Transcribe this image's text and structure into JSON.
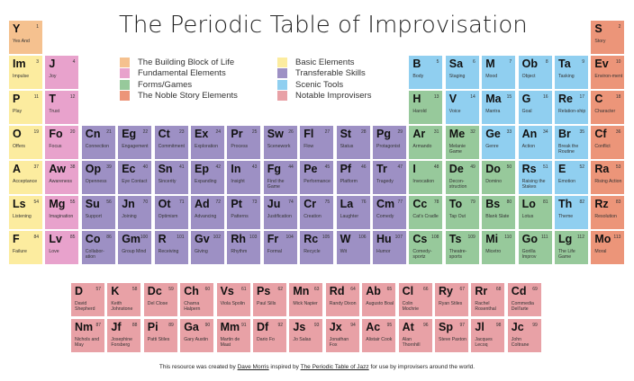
{
  "title": "The Periodic Table of Improvisation",
  "colors": {
    "building": "#f5c18f",
    "fundamental": "#e8a2cc",
    "forms": "#97c99b",
    "noble": "#ec9579",
    "basic": "#fcec9f",
    "transferable": "#9d90c4",
    "scenic": "#90cff0",
    "notable": "#e8a1a6"
  },
  "legend": [
    {
      "label": "The Building Block of Life",
      "category": "building"
    },
    {
      "label": "Fundamental Elements",
      "category": "fundamental"
    },
    {
      "label": "Forms/Games",
      "category": "forms"
    },
    {
      "label": "The Noble Story Elements",
      "category": "noble"
    },
    {
      "label": "Basic Elements",
      "category": "basic"
    },
    {
      "label": "Transferable Skills",
      "category": "transferable"
    },
    {
      "label": "Scenic Tools",
      "category": "scenic"
    },
    {
      "label": "Notable Improvisers",
      "category": "notable"
    }
  ],
  "elements": [
    {
      "sym": "Y",
      "num": "1",
      "name": "Yes And",
      "cat": "building",
      "col": 0,
      "row": 0
    },
    {
      "sym": "S",
      "num": "2",
      "name": "Story",
      "cat": "noble",
      "col": 16,
      "row": 0
    },
    {
      "sym": "Im",
      "num": "3",
      "name": "Impulse",
      "cat": "basic",
      "col": 0,
      "row": 1
    },
    {
      "sym": "J",
      "num": "4",
      "name": "Joy",
      "cat": "fundamental",
      "col": 1,
      "row": 1
    },
    {
      "sym": "B",
      "num": "5",
      "name": "Body",
      "cat": "scenic",
      "col": 11,
      "row": 1
    },
    {
      "sym": "Sa",
      "num": "6",
      "name": "Staging",
      "cat": "scenic",
      "col": 12,
      "row": 1
    },
    {
      "sym": "M",
      "num": "7",
      "name": "Mood",
      "cat": "scenic",
      "col": 13,
      "row": 1
    },
    {
      "sym": "Ob",
      "num": "8",
      "name": "Object",
      "cat": "scenic",
      "col": 14,
      "row": 1
    },
    {
      "sym": "Ta",
      "num": "9",
      "name": "Tasking",
      "cat": "scenic",
      "col": 15,
      "row": 1
    },
    {
      "sym": "Ev",
      "num": "10",
      "name": "Environ-ment",
      "cat": "noble",
      "col": 16,
      "row": 1
    },
    {
      "sym": "P",
      "num": "11",
      "name": "Play",
      "cat": "basic",
      "col": 0,
      "row": 2
    },
    {
      "sym": "T",
      "num": "12",
      "name": "Trust",
      "cat": "fundamental",
      "col": 1,
      "row": 2
    },
    {
      "sym": "H",
      "num": "13",
      "name": "Harold",
      "cat": "forms",
      "col": 11,
      "row": 2
    },
    {
      "sym": "V",
      "num": "14",
      "name": "Voice",
      "cat": "scenic",
      "col": 12,
      "row": 2
    },
    {
      "sym": "Ma",
      "num": "15",
      "name": "Mantra",
      "cat": "scenic",
      "col": 13,
      "row": 2
    },
    {
      "sym": "G",
      "num": "16",
      "name": "Goal",
      "cat": "scenic",
      "col": 14,
      "row": 2
    },
    {
      "sym": "Re",
      "num": "17",
      "name": "Relation-ship",
      "cat": "scenic",
      "col": 15,
      "row": 2
    },
    {
      "sym": "C",
      "num": "18",
      "name": "Character",
      "cat": "noble",
      "col": 16,
      "row": 2
    },
    {
      "sym": "O",
      "num": "19",
      "name": "Offers",
      "cat": "basic",
      "col": 0,
      "row": 3
    },
    {
      "sym": "Fo",
      "num": "20",
      "name": "Focus",
      "cat": "fundamental",
      "col": 1,
      "row": 3
    },
    {
      "sym": "Cn",
      "num": "21",
      "name": "Connection",
      "cat": "transferable",
      "col": 2,
      "row": 3
    },
    {
      "sym": "Eg",
      "num": "22",
      "name": "Engagement",
      "cat": "transferable",
      "col": 3,
      "row": 3
    },
    {
      "sym": "Ct",
      "num": "23",
      "name": "Commitment",
      "cat": "transferable",
      "col": 4,
      "row": 3
    },
    {
      "sym": "Ex",
      "num": "24",
      "name": "Exploration",
      "cat": "transferable",
      "col": 5,
      "row": 3
    },
    {
      "sym": "Pr",
      "num": "25",
      "name": "Process",
      "cat": "transferable",
      "col": 6,
      "row": 3
    },
    {
      "sym": "Sw",
      "num": "26",
      "name": "Scenework",
      "cat": "transferable",
      "col": 7,
      "row": 3
    },
    {
      "sym": "Fl",
      "num": "27",
      "name": "Flow",
      "cat": "transferable",
      "col": 8,
      "row": 3
    },
    {
      "sym": "St",
      "num": "28",
      "name": "Status",
      "cat": "transferable",
      "col": 9,
      "row": 3
    },
    {
      "sym": "Pg",
      "num": "29",
      "name": "Protagonist",
      "cat": "transferable",
      "col": 10,
      "row": 3
    },
    {
      "sym": "Ar",
      "num": "31",
      "name": "Armando",
      "cat": "forms",
      "col": 11,
      "row": 3
    },
    {
      "sym": "Me",
      "num": "32",
      "name": "Melanie Game",
      "cat": "forms",
      "col": 12,
      "row": 3
    },
    {
      "sym": "Ge",
      "num": "33",
      "name": "Genre",
      "cat": "scenic",
      "col": 13,
      "row": 3
    },
    {
      "sym": "An",
      "num": "34",
      "name": "Action",
      "cat": "scenic",
      "col": 14,
      "row": 3
    },
    {
      "sym": "Br",
      "num": "35",
      "name": "Break the Routine",
      "cat": "scenic",
      "col": 15,
      "row": 3
    },
    {
      "sym": "Cf",
      "num": "36",
      "name": "Conflict",
      "cat": "noble",
      "col": 16,
      "row": 3
    },
    {
      "sym": "A",
      "num": "37",
      "name": "Acceptance",
      "cat": "basic",
      "col": 0,
      "row": 4
    },
    {
      "sym": "Aw",
      "num": "38",
      "name": "Awareness",
      "cat": "fundamental",
      "col": 1,
      "row": 4
    },
    {
      "sym": "Op",
      "num": "39",
      "name": "Openness",
      "cat": "transferable",
      "col": 2,
      "row": 4
    },
    {
      "sym": "Ec",
      "num": "40",
      "name": "Eye Contact",
      "cat": "transferable",
      "col": 3,
      "row": 4
    },
    {
      "sym": "Sn",
      "num": "41",
      "name": "Sincerity",
      "cat": "transferable",
      "col": 4,
      "row": 4
    },
    {
      "sym": "Ep",
      "num": "42",
      "name": "Expanding",
      "cat": "transferable",
      "col": 5,
      "row": 4
    },
    {
      "sym": "In",
      "num": "43",
      "name": "Insight",
      "cat": "transferable",
      "col": 6,
      "row": 4
    },
    {
      "sym": "Fg",
      "num": "44",
      "name": "Find the Game",
      "cat": "transferable",
      "col": 7,
      "row": 4
    },
    {
      "sym": "Pe",
      "num": "45",
      "name": "Performance",
      "cat": "transferable",
      "col": 8,
      "row": 4
    },
    {
      "sym": "Pf",
      "num": "46",
      "name": "Platform",
      "cat": "transferable",
      "col": 9,
      "row": 4
    },
    {
      "sym": "Tr",
      "num": "47",
      "name": "Tragedy",
      "cat": "transferable",
      "col": 10,
      "row": 4
    },
    {
      "sym": "I",
      "num": "48",
      "name": "Invocation",
      "cat": "forms",
      "col": 11,
      "row": 4
    },
    {
      "sym": "De",
      "num": "49",
      "name": "Decon-struction",
      "cat": "forms",
      "col": 12,
      "row": 4
    },
    {
      "sym": "Do",
      "num": "50",
      "name": "Domino",
      "cat": "forms",
      "col": 13,
      "row": 4
    },
    {
      "sym": "Rs",
      "num": "51",
      "name": "Raising the Stakes",
      "cat": "scenic",
      "col": 14,
      "row": 4
    },
    {
      "sym": "E",
      "num": "52",
      "name": "Emotion",
      "cat": "scenic",
      "col": 15,
      "row": 4
    },
    {
      "sym": "Ra",
      "num": "53",
      "name": "Rising Action",
      "cat": "noble",
      "col": 16,
      "row": 4
    },
    {
      "sym": "Ls",
      "num": "54",
      "name": "Listening",
      "cat": "basic",
      "col": 0,
      "row": 5
    },
    {
      "sym": "Mg",
      "num": "55",
      "name": "Imagination",
      "cat": "fundamental",
      "col": 1,
      "row": 5
    },
    {
      "sym": "Su",
      "num": "56",
      "name": "Support",
      "cat": "transferable",
      "col": 2,
      "row": 5
    },
    {
      "sym": "Jn",
      "num": "70",
      "name": "Joining",
      "cat": "transferable",
      "col": 3,
      "row": 5
    },
    {
      "sym": "Ot",
      "num": "71",
      "name": "Optimism",
      "cat": "transferable",
      "col": 4,
      "row": 5
    },
    {
      "sym": "Ad",
      "num": "72",
      "name": "Advancing",
      "cat": "transferable",
      "col": 5,
      "row": 5
    },
    {
      "sym": "Pt",
      "num": "73",
      "name": "Patterns",
      "cat": "transferable",
      "col": 6,
      "row": 5
    },
    {
      "sym": "Ju",
      "num": "74",
      "name": "Justification",
      "cat": "transferable",
      "col": 7,
      "row": 5
    },
    {
      "sym": "Cr",
      "num": "75",
      "name": "Creation",
      "cat": "transferable",
      "col": 8,
      "row": 5
    },
    {
      "sym": "La",
      "num": "76",
      "name": "Laughter",
      "cat": "transferable",
      "col": 9,
      "row": 5
    },
    {
      "sym": "Cm",
      "num": "77",
      "name": "Comedy",
      "cat": "transferable",
      "col": 10,
      "row": 5
    },
    {
      "sym": "Cc",
      "num": "78",
      "name": "Cat's Cradle",
      "cat": "forms",
      "col": 11,
      "row": 5
    },
    {
      "sym": "To",
      "num": "79",
      "name": "Tap Out",
      "cat": "forms",
      "col": 12,
      "row": 5
    },
    {
      "sym": "Bs",
      "num": "80",
      "name": "Blank Slate",
      "cat": "forms",
      "col": 13,
      "row": 5
    },
    {
      "sym": "Lo",
      "num": "81",
      "name": "Lotus",
      "cat": "forms",
      "col": 14,
      "row": 5
    },
    {
      "sym": "Th",
      "num": "82",
      "name": "Theme",
      "cat": "scenic",
      "col": 15,
      "row": 5
    },
    {
      "sym": "Rz",
      "num": "83",
      "name": "Resolution",
      "cat": "noble",
      "col": 16,
      "row": 5
    },
    {
      "sym": "F",
      "num": "84",
      "name": "Failure",
      "cat": "basic",
      "col": 0,
      "row": 6
    },
    {
      "sym": "Lv",
      "num": "85",
      "name": "Love",
      "cat": "fundamental",
      "col": 1,
      "row": 6
    },
    {
      "sym": "Co",
      "num": "86",
      "name": "Collabor-ation",
      "cat": "transferable",
      "col": 2,
      "row": 6
    },
    {
      "sym": "Gm",
      "num": "100",
      "name": "Group Mind",
      "cat": "transferable",
      "col": 3,
      "row": 6
    },
    {
      "sym": "R",
      "num": "101",
      "name": "Receiving",
      "cat": "transferable",
      "col": 4,
      "row": 6
    },
    {
      "sym": "Gv",
      "num": "102",
      "name": "Giving",
      "cat": "transferable",
      "col": 5,
      "row": 6
    },
    {
      "sym": "Rh",
      "num": "103",
      "name": "Rhythm",
      "cat": "transferable",
      "col": 6,
      "row": 6
    },
    {
      "sym": "Fr",
      "num": "104",
      "name": "Formal",
      "cat": "transferable",
      "col": 7,
      "row": 6
    },
    {
      "sym": "Rc",
      "num": "105",
      "name": "Recycle",
      "cat": "transferable",
      "col": 8,
      "row": 6
    },
    {
      "sym": "W",
      "num": "106",
      "name": "Wit",
      "cat": "transferable",
      "col": 9,
      "row": 6
    },
    {
      "sym": "Hu",
      "num": "107",
      "name": "Humor",
      "cat": "transferable",
      "col": 10,
      "row": 6
    },
    {
      "sym": "Cs",
      "num": "108",
      "name": "Comedy-sportz",
      "cat": "forms",
      "col": 11,
      "row": 6
    },
    {
      "sym": "Ts",
      "num": "109",
      "name": "Theatre-sports",
      "cat": "forms",
      "col": 12,
      "row": 6
    },
    {
      "sym": "Mi",
      "num": "110",
      "name": "Micetro",
      "cat": "forms",
      "col": 13,
      "row": 6
    },
    {
      "sym": "Go",
      "num": "111",
      "name": "Gorilla Improv",
      "cat": "forms",
      "col": 14,
      "row": 6
    },
    {
      "sym": "Lg",
      "num": "112",
      "name": "The Life Game",
      "cat": "forms",
      "col": 15,
      "row": 6
    },
    {
      "sym": "Mo",
      "num": "113",
      "name": "Moral",
      "cat": "noble",
      "col": 16,
      "row": 6
    }
  ],
  "improvisers": [
    {
      "sym": "D",
      "num": "57",
      "name": "David Shepherd",
      "col": 0,
      "row": 0
    },
    {
      "sym": "K",
      "num": "58",
      "name": "Keith Johnstone",
      "col": 1,
      "row": 0
    },
    {
      "sym": "Dc",
      "num": "59",
      "name": "Del Close",
      "col": 2,
      "row": 0
    },
    {
      "sym": "Ch",
      "num": "60",
      "name": "Charna Halpern",
      "col": 3,
      "row": 0
    },
    {
      "sym": "Vs",
      "num": "61",
      "name": "Viola Spolin",
      "col": 4,
      "row": 0
    },
    {
      "sym": "Ps",
      "num": "62",
      "name": "Paul Sills",
      "col": 5,
      "row": 0
    },
    {
      "sym": "Mn",
      "num": "63",
      "name": "Mick Napier",
      "col": 6,
      "row": 0
    },
    {
      "sym": "Rd",
      "num": "64",
      "name": "Randy Dixon",
      "col": 7,
      "row": 0
    },
    {
      "sym": "Ab",
      "num": "65",
      "name": "Augusto Boal",
      "col": 8,
      "row": 0
    },
    {
      "sym": "Cl",
      "num": "66",
      "name": "Colin Mochrie",
      "col": 9,
      "row": 0
    },
    {
      "sym": "Ry",
      "num": "67",
      "name": "Ryan Stiles",
      "col": 10,
      "row": 0
    },
    {
      "sym": "Rr",
      "num": "68",
      "name": "Rachel Rosenthal",
      "col": 11,
      "row": 0
    },
    {
      "sym": "Cd",
      "num": "69",
      "name": "Commedia Dell'arte",
      "col": 12,
      "row": 0
    },
    {
      "sym": "Nm",
      "num": "87",
      "name": "Nichols and May",
      "col": 0,
      "row": 1
    },
    {
      "sym": "Jf",
      "num": "88",
      "name": "Josephine Forsberg",
      "col": 1,
      "row": 1
    },
    {
      "sym": "Pi",
      "num": "89",
      "name": "Patti Stiles",
      "col": 2,
      "row": 1
    },
    {
      "sym": "Ga",
      "num": "90",
      "name": "Gary Austin",
      "col": 3,
      "row": 1
    },
    {
      "sym": "Mm",
      "num": "91",
      "name": "Martin de Maat",
      "col": 4,
      "row": 1
    },
    {
      "sym": "Df",
      "num": "92",
      "name": "Dario Fo",
      "col": 5,
      "row": 1
    },
    {
      "sym": "Js",
      "num": "93",
      "name": "Jo Salas",
      "col": 6,
      "row": 1
    },
    {
      "sym": "Jx",
      "num": "94",
      "name": "Jonathan Fox",
      "col": 7,
      "row": 1
    },
    {
      "sym": "Ac",
      "num": "95",
      "name": "Alistair Cook",
      "col": 8,
      "row": 1
    },
    {
      "sym": "At",
      "num": "96",
      "name": "Alan Thornhill",
      "col": 9,
      "row": 1
    },
    {
      "sym": "Sp",
      "num": "97",
      "name": "Steve Paxton",
      "col": 10,
      "row": 1
    },
    {
      "sym": "Jl",
      "num": "98",
      "name": "Jacques Lecoq",
      "col": 11,
      "row": 1
    },
    {
      "sym": "Jc",
      "num": "99",
      "name": "John Coltrane",
      "col": 12,
      "row": 1
    }
  ],
  "footer": {
    "prefix": "This resource was created by ",
    "author_link": "Dave Morris",
    "middle": " inspired by ",
    "source_link": "The Periodic Table of Jazz",
    "suffix": " for use by improvisers around the world."
  }
}
